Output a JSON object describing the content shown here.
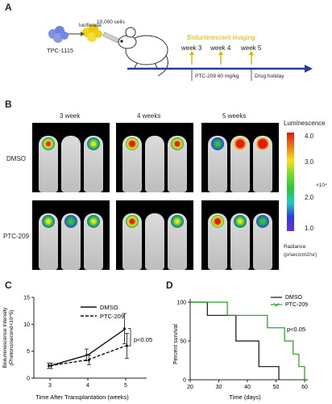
{
  "panelA": {
    "label": "A",
    "cell_line": "TPC-1115",
    "luciferase": "luciferase",
    "cells": "10,000 cells",
    "imaging": "Bioluminescent imaging",
    "weeks": [
      "week 3",
      "week 4",
      "week 5"
    ],
    "treatment": "PTC-209 60 mg/kg",
    "holiday": "Drug holiday"
  },
  "panelB": {
    "label": "B",
    "columns": [
      "3 week",
      "4 weeks",
      "5 weeks"
    ],
    "rows": [
      "DMSO",
      "PTC-209"
    ],
    "scale_title": "Luminescence",
    "scale_ticks": [
      "4.0",
      "3.0",
      "2.0",
      "1.0"
    ],
    "scale_exp": "×10⁴",
    "radiance_1": "Radiance",
    "radiance_2": "(p/sec/cm2/sr)",
    "colors": {
      "red": "#e21818",
      "yellow": "#f3e21d",
      "green": "#28c63c",
      "blue": "#2a3fd8",
      "purple": "#6b2fd1"
    }
  },
  "panelC": {
    "label": "C",
    "chart_data": {
      "type": "line",
      "x": [
        3,
        4,
        5
      ],
      "xlabel": "Time After Transplantation (weeks)",
      "ylabel_1": "Bioluminescence Intensity",
      "ylabel_2": "(Photons/second×10^5)",
      "ylim": [
        0,
        15
      ],
      "yticks": [
        "0",
        "5",
        "10",
        "15"
      ],
      "xticks": [
        "3",
        "4",
        "5"
      ],
      "series": [
        {
          "name": "DMSO",
          "values": [
            2.3,
            4.3,
            9.2
          ],
          "err": [
            0.5,
            1.1,
            2.8
          ],
          "style": "solid"
        },
        {
          "name": "PTC-209",
          "values": [
            2.3,
            3.4,
            6.0
          ],
          "err": [
            0.5,
            0.9,
            2.3
          ],
          "style": "dashed"
        }
      ],
      "annotation": "p<0.05"
    }
  },
  "panelD": {
    "label": "D",
    "chart_data": {
      "type": "line",
      "xlabel": "Time (days)",
      "ylabel": "Percent survival",
      "xlim": [
        20,
        60
      ],
      "ylim": [
        0,
        100
      ],
      "xticks": [
        "20",
        "30",
        "40",
        "50",
        "60"
      ],
      "yticks": [
        "0",
        "50",
        "100"
      ],
      "series": [
        {
          "name": "DMSO",
          "color": "#111111",
          "steps": [
            [
              20,
              100
            ],
            [
              26,
              100
            ],
            [
              26,
              83
            ],
            [
              36,
              83
            ],
            [
              36,
              50
            ],
            [
              44,
              50
            ],
            [
              44,
              17
            ],
            [
              51,
              17
            ],
            [
              51,
              0
            ]
          ]
        },
        {
          "name": "PTC-209",
          "color": "#2a9a2a",
          "steps": [
            [
              20,
              100
            ],
            [
              33,
              100
            ],
            [
              33,
              83
            ],
            [
              47,
              83
            ],
            [
              47,
              67
            ],
            [
              53,
              67
            ],
            [
              53,
              50
            ],
            [
              56,
              50
            ],
            [
              56,
              33
            ],
            [
              58,
              33
            ],
            [
              58,
              17
            ],
            [
              60,
              17
            ],
            [
              60,
              0
            ]
          ]
        }
      ],
      "annotation": "p<0.05"
    }
  }
}
